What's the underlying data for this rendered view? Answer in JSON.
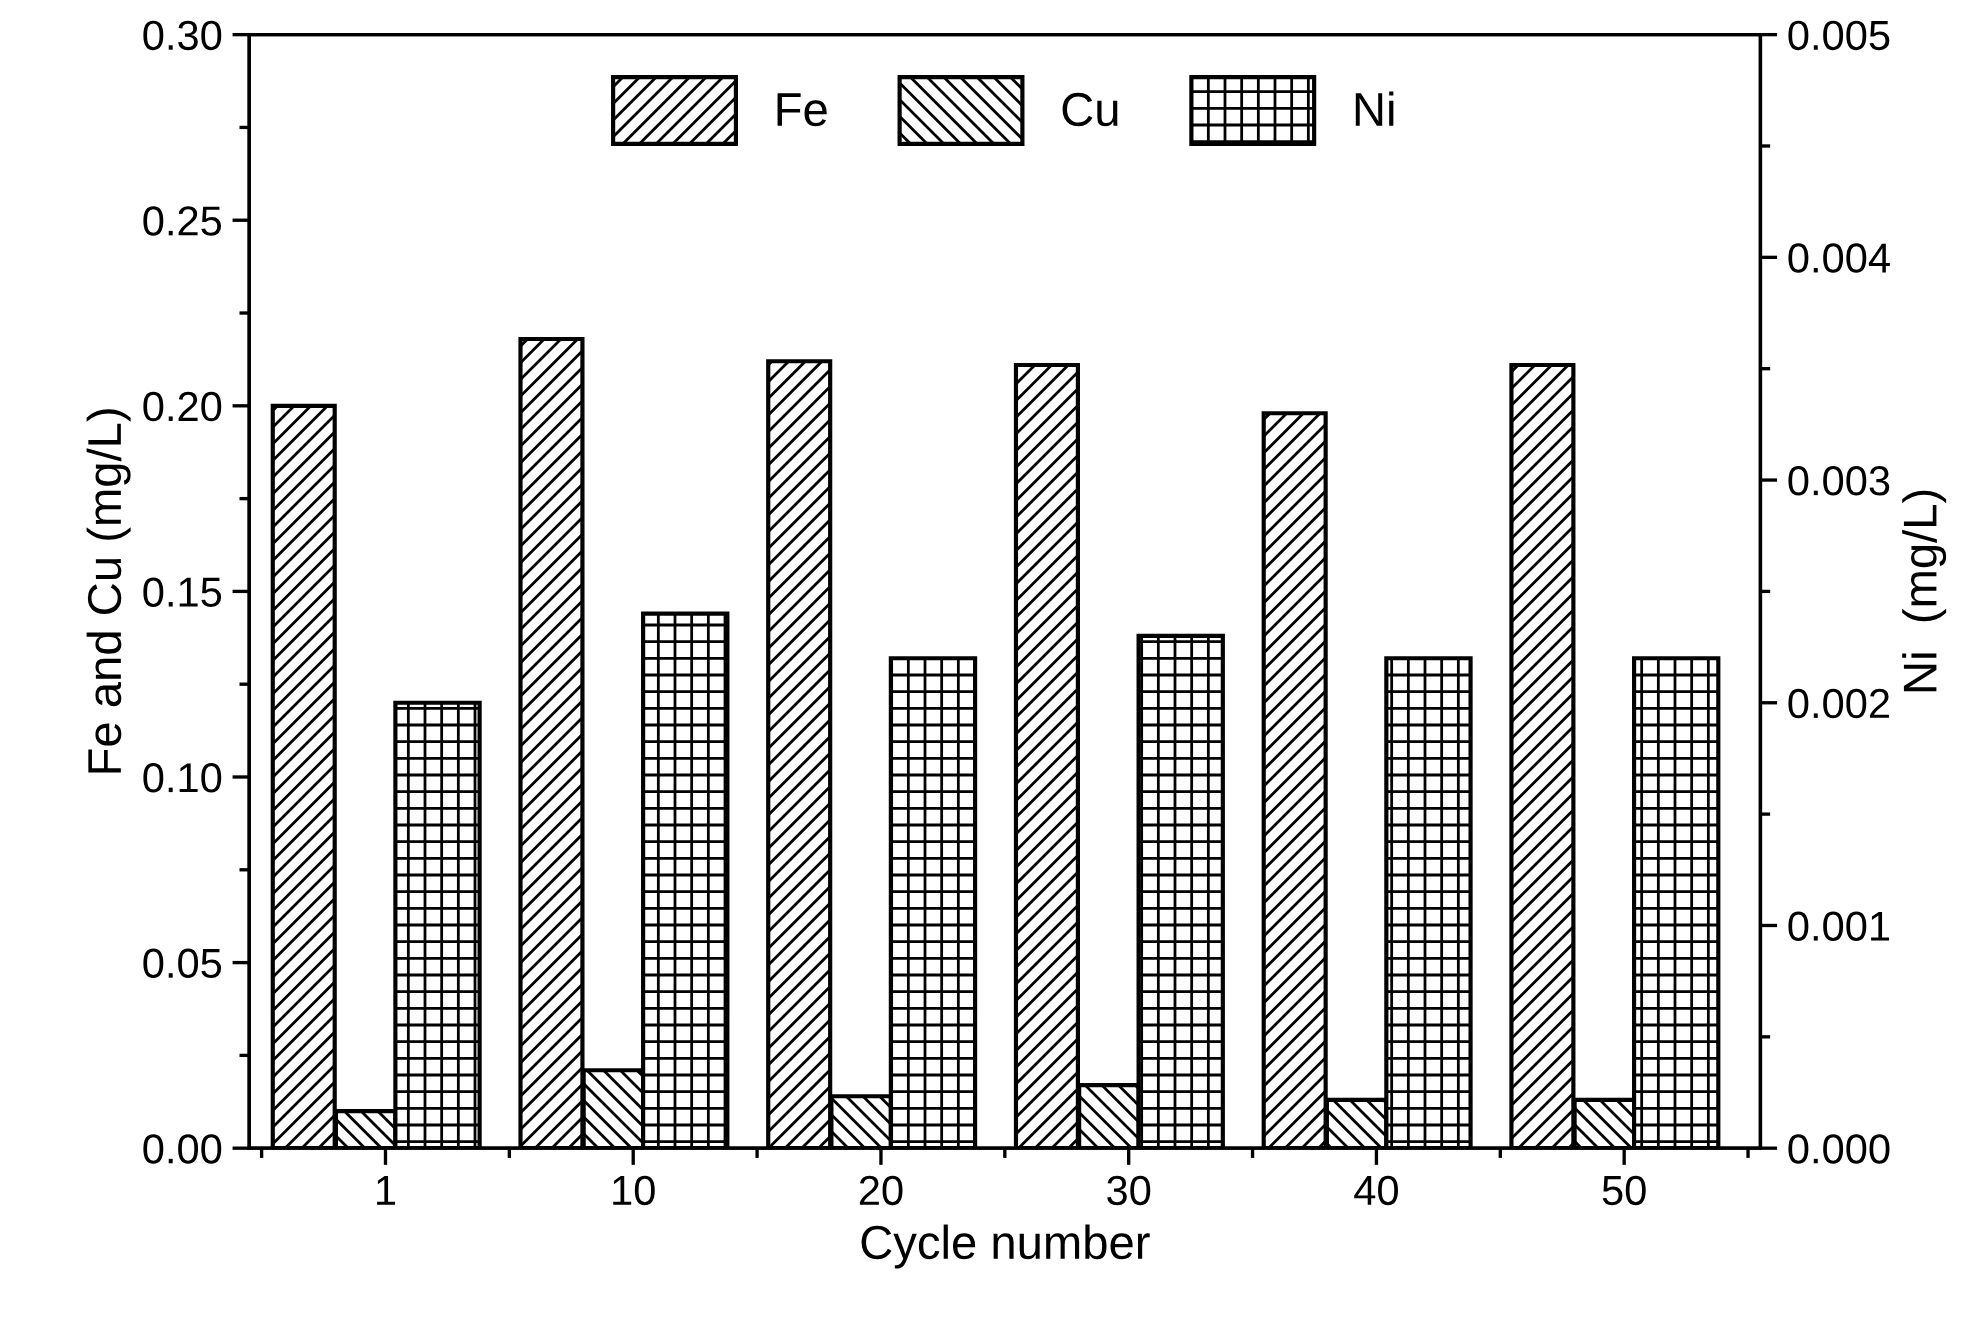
{
  "chart_data": {
    "type": "bar",
    "xlabel": "Cycle number",
    "ylabel": "Fe and Cu (mg/L)",
    "y2label": "Ni  (mg/L)",
    "categories": [
      "1",
      "10",
      "20",
      "30",
      "40",
      "50"
    ],
    "series": [
      {
        "name": "Fe",
        "color": "#000000",
        "values": [
          0.2,
          0.218,
          0.212,
          0.211,
          0.198,
          0.211
        ]
      },
      {
        "name": "Cu",
        "color": "#000000",
        "values": [
          0.01,
          0.021,
          0.014,
          0.017,
          0.013,
          0.013
        ]
      },
      {
        "name": "Ni",
        "color": "#000000",
        "axis": "y2",
        "values": [
          0.002,
          0.0024,
          0.0022,
          0.0023,
          0.0022,
          0.0022
        ]
      }
    ],
    "ylim": [
      0,
      0.3
    ],
    "yticks": [
      {
        "value": 0,
        "label": "0.00"
      },
      {
        "value": 0.05,
        "label": "0.05"
      },
      {
        "value": 0.1,
        "label": "0.10"
      },
      {
        "value": 0.15,
        "label": "0.15"
      },
      {
        "value": 0.2,
        "label": "0.20"
      },
      {
        "value": 0.25,
        "label": "0.25"
      },
      {
        "value": 0.3,
        "label": "0.30"
      }
    ],
    "y2lim": [
      0,
      0.005
    ],
    "y2ticks": [
      {
        "value": 0,
        "label": "0.000"
      },
      {
        "value": 0.001,
        "label": "0.001"
      },
      {
        "value": 0.002,
        "label": "0.002"
      },
      {
        "value": 0.003,
        "label": "0.003"
      },
      {
        "value": 0.004,
        "label": "0.004"
      },
      {
        "value": 0.005,
        "label": "0.005"
      }
    ],
    "legend": "top",
    "grid": false
  }
}
